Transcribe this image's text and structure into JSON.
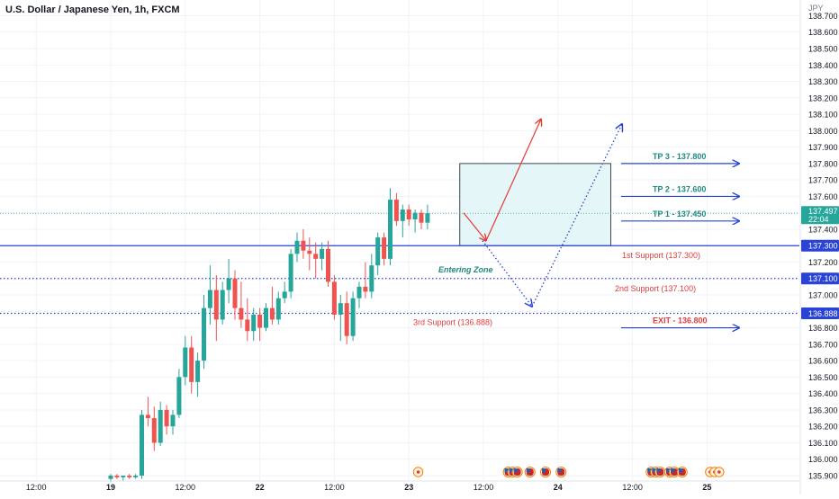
{
  "title": "U.S. Dollar / Japanese Yen, 1h, FXCM",
  "currency": "JPY",
  "colors": {
    "up": "#26a69a",
    "down": "#ef5350",
    "blue": "#2943d6",
    "grid": "#f0f3fa",
    "axis_text": "#131722",
    "price_label": "#2943d6",
    "current_label": "#26a69a",
    "tp_text": "#1e8a7e",
    "support_text": "#e03c3c",
    "target_zone": "#e4f6f7",
    "stop_zone": "#fdf1f2",
    "arrow_red": "#e53935"
  },
  "chart_data": {
    "type": "candlestick",
    "y_axis": {
      "min": 135.9,
      "max": 138.7,
      "ticks": [
        135.9,
        136.0,
        136.1,
        136.2,
        136.3,
        136.4,
        136.5,
        136.6,
        136.7,
        136.8,
        136.9,
        137.0,
        137.1,
        137.2,
        137.3,
        137.4,
        137.5,
        137.6,
        137.7,
        137.8,
        137.9,
        138.0,
        138.1,
        138.2,
        138.3,
        138.4,
        138.5,
        138.6,
        138.7
      ],
      "tick_labels": [
        "135.900",
        "136.000",
        "136.100",
        "136.200",
        "136.300",
        "136.400",
        "136.500",
        "136.600",
        "136.700",
        "136.800",
        "136.900",
        "137.000",
        "137.100",
        "137.200",
        "137.300",
        "137.400",
        "137.500",
        "137.600",
        "137.700",
        "137.800",
        "137.900",
        "138.000",
        "138.100",
        "138.200",
        "138.300",
        "138.400",
        "138.500",
        "138.600",
        "138.700"
      ]
    },
    "x_axis": {
      "labels": [
        {
          "text": "12:00",
          "bar": -12
        },
        {
          "text": "19",
          "bar": 0
        },
        {
          "text": "12:00",
          "bar": 12
        },
        {
          "text": "22",
          "bar": 24
        },
        {
          "text": "12:00",
          "bar": 36
        },
        {
          "text": "23",
          "bar": 48
        },
        {
          "text": "12:00",
          "bar": 60
        },
        {
          "text": "24",
          "bar": 72
        },
        {
          "text": "12:00",
          "bar": 84
        },
        {
          "text": "25",
          "bar": 96
        }
      ]
    },
    "candles": [
      {
        "o": 135.88,
        "h": 135.91,
        "l": 135.86,
        "c": 135.9
      },
      {
        "o": 135.9,
        "h": 135.91,
        "l": 135.88,
        "c": 135.89
      },
      {
        "o": 135.89,
        "h": 135.9,
        "l": 135.87,
        "c": 135.9
      },
      {
        "o": 135.9,
        "h": 135.91,
        "l": 135.88,
        "c": 135.89
      },
      {
        "o": 135.89,
        "h": 135.91,
        "l": 135.88,
        "c": 135.9
      },
      {
        "o": 135.9,
        "h": 136.3,
        "l": 135.88,
        "c": 136.27
      },
      {
        "o": 136.27,
        "h": 136.38,
        "l": 136.2,
        "c": 136.25
      },
      {
        "o": 136.25,
        "h": 136.32,
        "l": 136.05,
        "c": 136.1
      },
      {
        "o": 136.1,
        "h": 136.35,
        "l": 136.08,
        "c": 136.3
      },
      {
        "o": 136.3,
        "h": 136.33,
        "l": 136.15,
        "c": 136.2
      },
      {
        "o": 136.2,
        "h": 136.3,
        "l": 136.15,
        "c": 136.27
      },
      {
        "o": 136.27,
        "h": 136.55,
        "l": 136.25,
        "c": 136.5
      },
      {
        "o": 136.5,
        "h": 136.75,
        "l": 136.45,
        "c": 136.68
      },
      {
        "o": 136.68,
        "h": 136.75,
        "l": 136.4,
        "c": 136.47
      },
      {
        "o": 136.47,
        "h": 136.65,
        "l": 136.38,
        "c": 136.6
      },
      {
        "o": 136.6,
        "h": 137.0,
        "l": 136.55,
        "c": 136.92
      },
      {
        "o": 136.92,
        "h": 137.18,
        "l": 136.82,
        "c": 137.03
      },
      {
        "o": 137.03,
        "h": 137.12,
        "l": 136.72,
        "c": 136.85
      },
      {
        "o": 136.85,
        "h": 137.08,
        "l": 136.82,
        "c": 137.03
      },
      {
        "o": 137.03,
        "h": 137.22,
        "l": 136.95,
        "c": 137.1
      },
      {
        "o": 137.1,
        "h": 137.15,
        "l": 136.85,
        "c": 136.92
      },
      {
        "o": 136.92,
        "h": 137.08,
        "l": 136.8,
        "c": 136.85
      },
      {
        "o": 136.85,
        "h": 136.98,
        "l": 136.72,
        "c": 136.78
      },
      {
        "o": 136.78,
        "h": 136.92,
        "l": 136.72,
        "c": 136.88
      },
      {
        "o": 136.88,
        "h": 136.92,
        "l": 136.72,
        "c": 136.8
      },
      {
        "o": 136.8,
        "h": 136.95,
        "l": 136.78,
        "c": 136.92
      },
      {
        "o": 136.92,
        "h": 137.05,
        "l": 136.82,
        "c": 136.85
      },
      {
        "o": 136.85,
        "h": 137.02,
        "l": 136.82,
        "c": 136.98
      },
      {
        "o": 136.98,
        "h": 137.08,
        "l": 136.95,
        "c": 137.02
      },
      {
        "o": 137.02,
        "h": 137.28,
        "l": 136.98,
        "c": 137.25
      },
      {
        "o": 137.25,
        "h": 137.38,
        "l": 137.2,
        "c": 137.33
      },
      {
        "o": 137.33,
        "h": 137.4,
        "l": 137.22,
        "c": 137.27
      },
      {
        "o": 137.27,
        "h": 137.35,
        "l": 137.15,
        "c": 137.25
      },
      {
        "o": 137.25,
        "h": 137.32,
        "l": 137.1,
        "c": 137.22
      },
      {
        "o": 137.22,
        "h": 137.32,
        "l": 137.15,
        "c": 137.28
      },
      {
        "o": 137.28,
        "h": 137.33,
        "l": 137.05,
        "c": 137.08
      },
      {
        "o": 137.08,
        "h": 137.12,
        "l": 136.85,
        "c": 136.88
      },
      {
        "o": 136.88,
        "h": 137.0,
        "l": 136.72,
        "c": 136.95
      },
      {
        "o": 136.95,
        "h": 137.02,
        "l": 136.7,
        "c": 136.75
      },
      {
        "o": 136.75,
        "h": 137.02,
        "l": 136.72,
        "c": 136.98
      },
      {
        "o": 136.98,
        "h": 137.08,
        "l": 136.92,
        "c": 137.05
      },
      {
        "o": 137.05,
        "h": 137.2,
        "l": 136.98,
        "c": 137.02
      },
      {
        "o": 137.02,
        "h": 137.25,
        "l": 136.98,
        "c": 137.18
      },
      {
        "o": 137.18,
        "h": 137.38,
        "l": 137.12,
        "c": 137.35
      },
      {
        "o": 137.35,
        "h": 137.38,
        "l": 137.18,
        "c": 137.22
      },
      {
        "o": 137.22,
        "h": 137.65,
        "l": 137.18,
        "c": 137.58
      },
      {
        "o": 137.58,
        "h": 137.62,
        "l": 137.42,
        "c": 137.45
      },
      {
        "o": 137.45,
        "h": 137.55,
        "l": 137.35,
        "c": 137.52
      },
      {
        "o": 137.52,
        "h": 137.55,
        "l": 137.42,
        "c": 137.46
      },
      {
        "o": 137.46,
        "h": 137.52,
        "l": 137.38,
        "c": 137.5
      },
      {
        "o": 137.5,
        "h": 137.52,
        "l": 137.4,
        "c": 137.44
      },
      {
        "o": 137.44,
        "h": 137.55,
        "l": 137.4,
        "c": 137.497
      }
    ],
    "horizontal_lines": [
      {
        "price": 137.3,
        "style": "solid",
        "label": "137.300"
      },
      {
        "price": 137.1,
        "style": "dotted",
        "label": "137.100"
      },
      {
        "price": 136.888,
        "style": "dotted",
        "label": "136.888"
      }
    ],
    "current_price": {
      "label": "137.497",
      "countdown": "22:04"
    },
    "zones": [
      {
        "name": "target",
        "from_price": 137.3,
        "to_price": 137.8
      },
      {
        "name": "stop",
        "from_price": 136.888,
        "to_price": 137.3
      }
    ],
    "annotations": {
      "entering_zone": "Entering Zone",
      "tp3": "TP 3 - 137.800",
      "tp2": "TP 2 - 137.600",
      "tp1": "TP 1 - 137.450",
      "support1": "1st Support (137.300)",
      "support2": "2nd Support (137.100)",
      "support3": "3rd Support (136.888)",
      "exit": "EXIT - 136.800"
    },
    "event_markers": [
      {
        "bar": 49.5,
        "count": 1,
        "kind": "target"
      },
      {
        "bar": 64,
        "count": 3,
        "kind": "us-flag"
      },
      {
        "bar": 67.5,
        "count": 1,
        "kind": "us-flag"
      },
      {
        "bar": 70,
        "count": 1,
        "kind": "us-flag"
      },
      {
        "bar": 72.5,
        "count": 1,
        "kind": "us-flag"
      },
      {
        "bar": 87,
        "count": 3,
        "kind": "us-flag"
      },
      {
        "bar": 90,
        "count": 2,
        "kind": "us-flag"
      },
      {
        "bar": 92,
        "count": 1,
        "kind": "us-flag"
      },
      {
        "bar": 96.5,
        "count": 3,
        "kind": "target"
      }
    ]
  }
}
